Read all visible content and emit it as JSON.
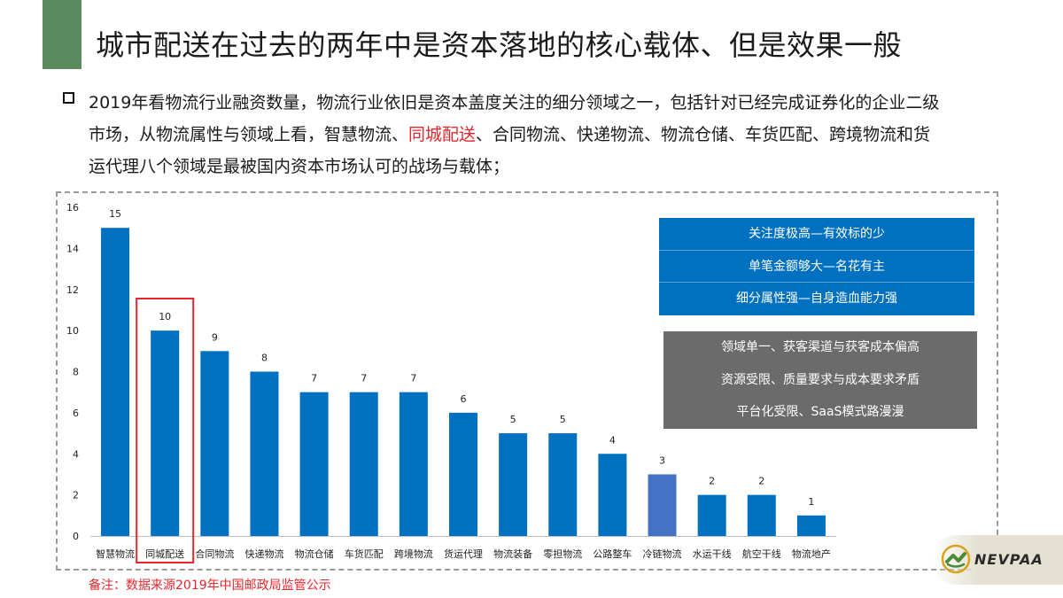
{
  "header": {
    "title": "城市配送在过去的两年中是资本落地的核心载体、但是效果一般"
  },
  "intro": {
    "line1": "2019年看物流行业融资数量，物流行业依旧是资本盖度关注的细分领域之一，包括针对已经完成证券化的企业二级",
    "line2_before": "市场，从物流属性与领域上看，智慧物流、",
    "line2_highlight": "同城配送",
    "line2_after": "、合同物流、快递物流、物流仓储、车货匹配、跨境物流和货",
    "line3": "运代理八个领域是最被国内资本市场认可的战场与载体；"
  },
  "colors": {
    "accent_green": "#5a8a5e",
    "bar_blue": "#0070c0",
    "bar_highlight": "#4472c4",
    "highlight_red": "#e8262b",
    "panel_gray": "#6b6b6b"
  },
  "chart_data": {
    "type": "bar",
    "categories": [
      "智慧物流",
      "同城配送",
      "合同物流",
      "快递物流",
      "物流仓储",
      "车货匹配",
      "跨境物流",
      "货运代理",
      "物流装备",
      "零担物流",
      "公路整车",
      "冷链物流",
      "水运干线",
      "航空干线",
      "物流地产"
    ],
    "values": [
      15,
      10,
      9,
      8,
      7,
      7,
      7,
      6,
      5,
      5,
      4,
      3,
      2,
      2,
      1
    ],
    "ylim": [
      0,
      16
    ],
    "yticks": [
      0,
      2,
      4,
      6,
      8,
      10,
      12,
      14,
      16
    ],
    "highlighted_category": "同城配送",
    "lighter_bar_category": "冷链物流",
    "grid": false
  },
  "panels": {
    "positives": [
      "关注度极高—有效标的少",
      "单笔金额够大—名花有主",
      "细分属性强—自身造血能力强"
    ],
    "negatives": [
      "领域单一、获客渠道与获客成本偏高",
      "资源受限、质量要求与成本要求矛盾",
      "平台化受限、SaaS模式路漫漫"
    ]
  },
  "footer": {
    "note": "备注：数据来源2019年中国邮政局监管公示",
    "logo_text": "NEVPAA",
    "logo_icon": "nevpaa-logo-icon"
  }
}
